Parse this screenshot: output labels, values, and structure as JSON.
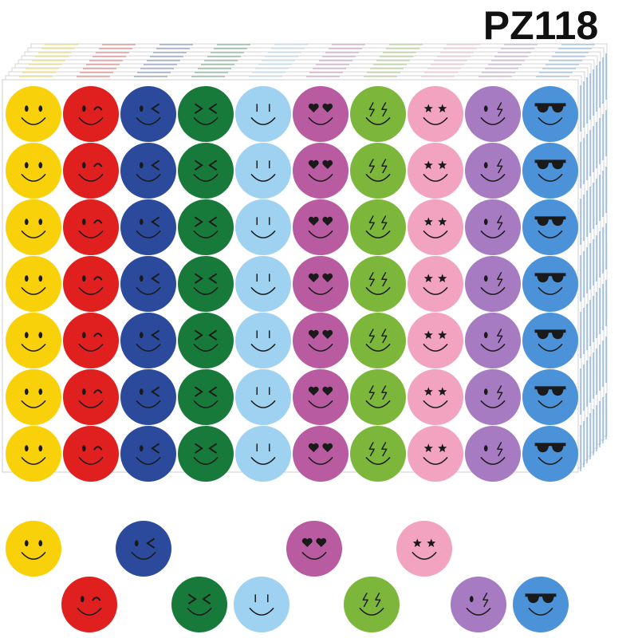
{
  "product_code": "PZ118"
}
